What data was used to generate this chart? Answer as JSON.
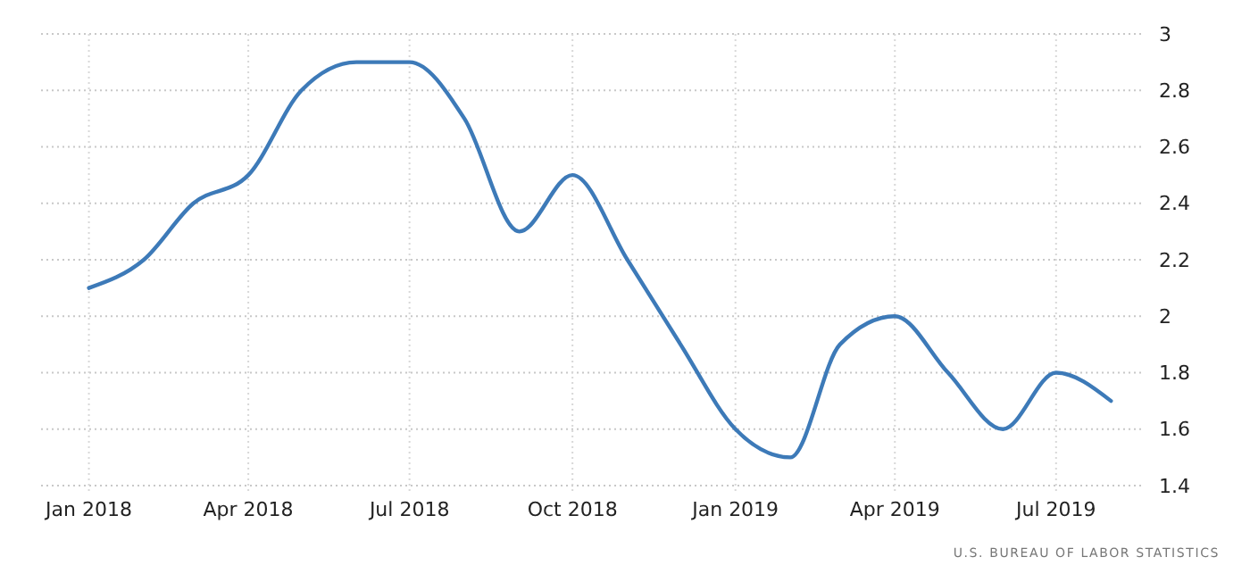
{
  "chart_data": {
    "type": "line",
    "x": [
      "2018-01-01",
      "2018-02-01",
      "2018-03-01",
      "2018-04-01",
      "2018-05-01",
      "2018-06-01",
      "2018-07-01",
      "2018-08-01",
      "2018-09-01",
      "2018-10-01",
      "2018-11-01",
      "2018-12-01",
      "2019-01-01",
      "2019-02-01",
      "2019-03-01",
      "2019-04-01",
      "2019-05-01",
      "2019-06-01",
      "2019-07-01",
      "2019-08-01"
    ],
    "series": [
      {
        "color": "#3d7ab8",
        "values": [
          2.1,
          2.2,
          2.4,
          2.5,
          2.8,
          2.9,
          2.9,
          2.7,
          2.3,
          2.5,
          2.2,
          1.9,
          1.6,
          1.5,
          1.9,
          2.0,
          1.8,
          1.6,
          1.8,
          1.7
        ]
      }
    ],
    "xlim": [
      "2017-12-05",
      "2019-08-19"
    ],
    "xticks": [
      {
        "value": "2018-01-01",
        "label": "Jan 2018"
      },
      {
        "value": "2018-04-01",
        "label": "Apr 2018"
      },
      {
        "value": "2018-07-01",
        "label": "Jul 2018"
      },
      {
        "value": "2018-10-01",
        "label": "Oct 2018"
      },
      {
        "value": "2019-01-01",
        "label": "Jan 2019"
      },
      {
        "value": "2019-04-01",
        "label": "Apr 2019"
      },
      {
        "value": "2019-07-01",
        "label": "Jul 2019"
      }
    ],
    "ylim": [
      1.4,
      3
    ],
    "yticks": [
      1.4,
      1.6,
      1.8,
      2,
      2.2,
      2.4,
      2.6,
      2.8,
      3
    ],
    "grid": true,
    "marker": "none",
    "line_style": "solid",
    "annotations": [
      "U.S. BUREAU OF LABOR STATISTICS"
    ]
  }
}
